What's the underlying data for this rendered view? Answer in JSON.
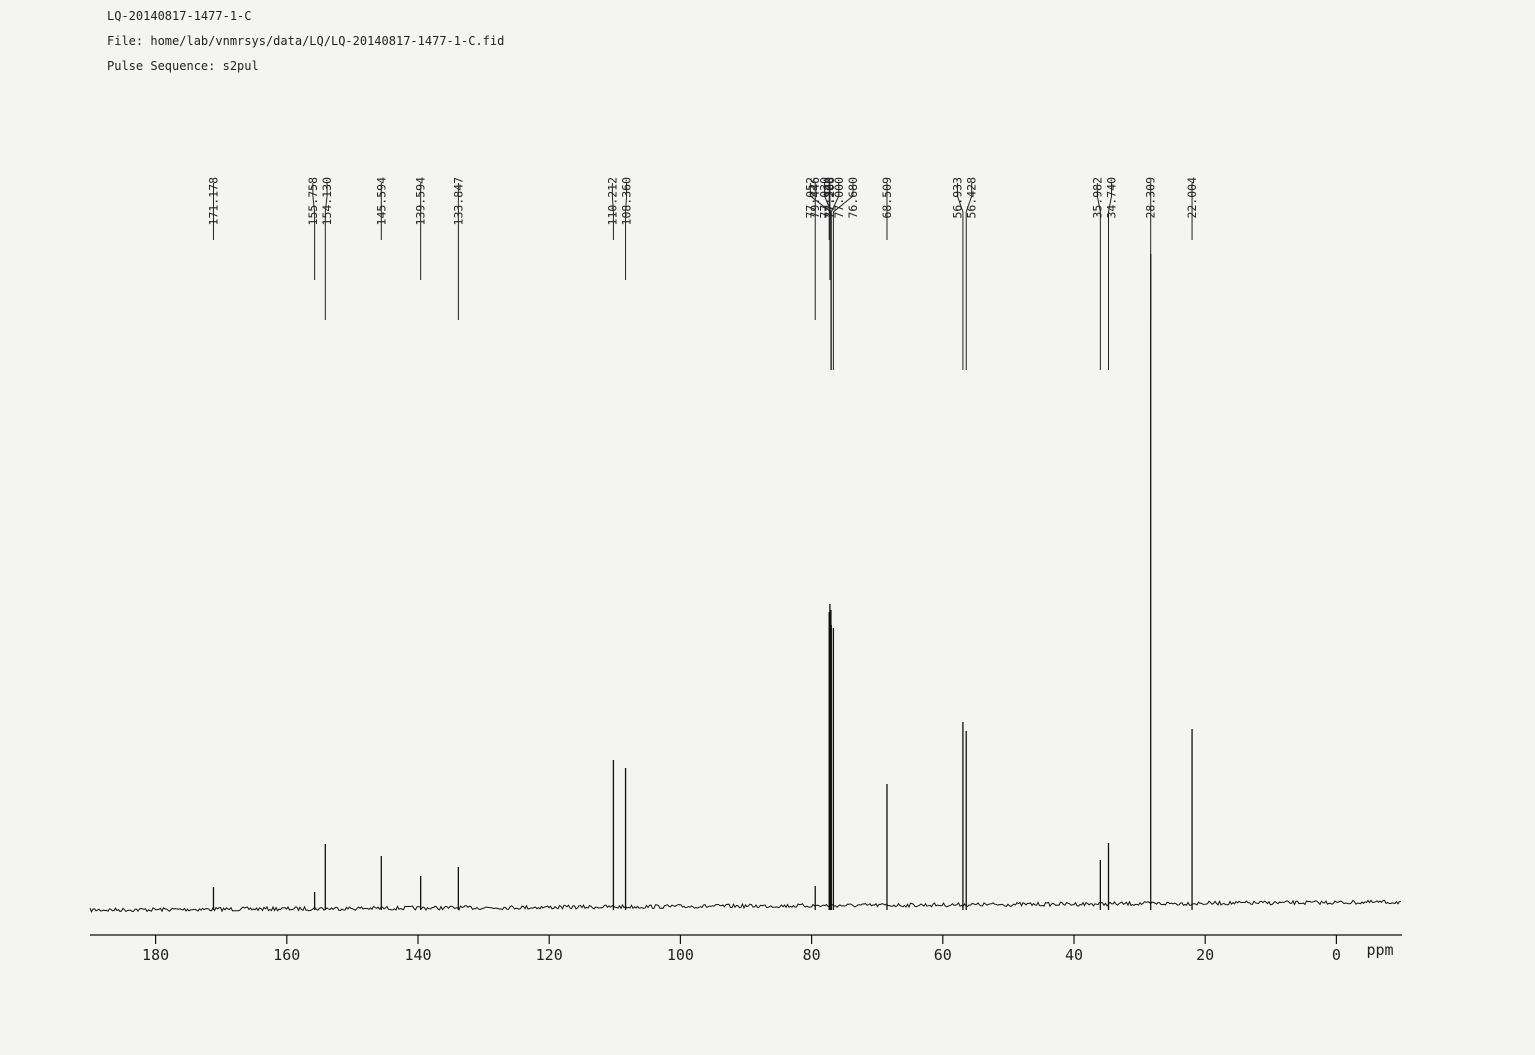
{
  "chart_data": {
    "type": "spectrum",
    "title": "LQ-20140817-1477-1-C",
    "annotations": [
      "File: home/lab/vnmrsys/data/LQ/LQ-20140817-1477-1-C.fid",
      "Pulse Sequence: s2pul"
    ],
    "x_label": "ppm",
    "xlim": [
      190,
      -10
    ],
    "xticks": [
      180,
      160,
      140,
      120,
      100,
      80,
      60,
      40,
      20,
      0
    ],
    "ylim": [
      0,
      700
    ],
    "x": [
      171.178,
      155.758,
      154.13,
      145.594,
      139.594,
      133.847,
      110.212,
      108.36,
      79.446,
      77.32,
      77.208,
      77.052,
      77.03,
      77.0,
      76.68,
      68.509,
      56.933,
      56.428,
      35.982,
      34.74,
      28.309,
      22.004
    ],
    "x_labels": [
      "171.178",
      "155.758",
      "154.130",
      "145.594",
      "139.594",
      "133.847",
      "110.212",
      "108.360",
      "79.446",
      "77.320",
      "77.208",
      "77.052",
      "77.030",
      "77.000",
      "76.680",
      "68.509",
      "56.933",
      "56.428",
      "35.982",
      "34.740",
      "28.309",
      "22.004"
    ],
    "values": [
      23,
      18,
      66,
      54,
      34,
      43,
      150,
      142,
      24,
      298,
      306,
      300,
      282,
      285,
      282,
      126,
      188,
      179,
      50,
      67,
      656,
      181
    ],
    "color": "#111111"
  }
}
